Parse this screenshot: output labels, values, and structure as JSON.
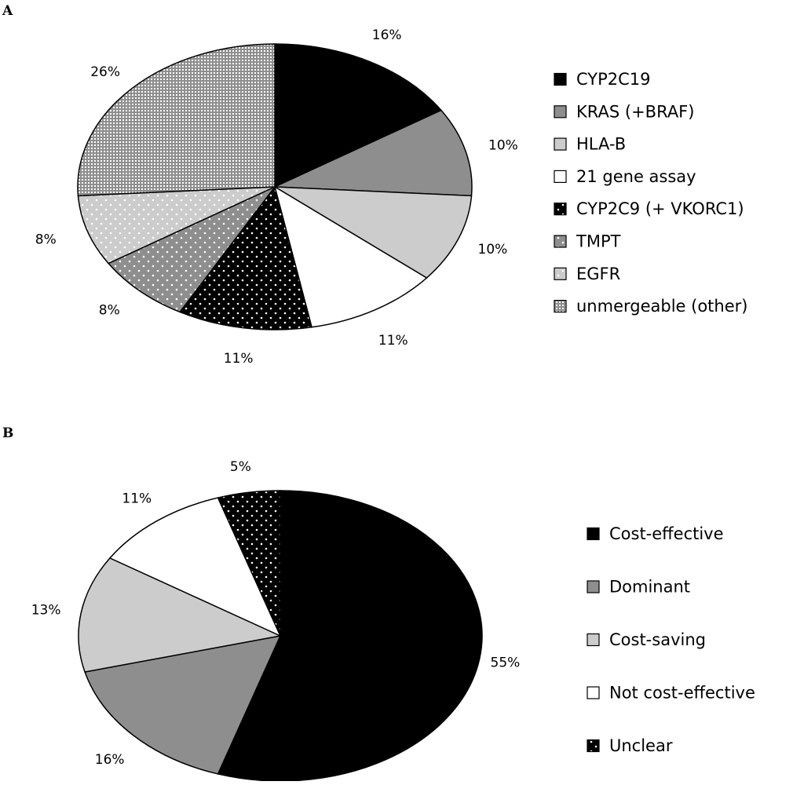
{
  "colors": {
    "black": "#000000",
    "dark_gray": "#8e8e8e",
    "light_gray": "#cccccc",
    "white": "#ffffff",
    "stroke": "#000000"
  },
  "chart_data": [
    {
      "type": "pie",
      "panel_label": "A",
      "legend_position": "right",
      "slices": [
        {
          "label": "CYP2C19",
          "value": 16,
          "value_label": "16%",
          "fill": "black",
          "pattern": "solid"
        },
        {
          "label": "KRAS (+BRAF)",
          "value": 10,
          "value_label": "10%",
          "fill": "dark_gray",
          "pattern": "solid"
        },
        {
          "label": "HLA-B",
          "value": 10,
          "value_label": "10%",
          "fill": "light_gray",
          "pattern": "solid"
        },
        {
          "label": "21 gene assay",
          "value": 11,
          "value_label": "11%",
          "fill": "white",
          "pattern": "solid"
        },
        {
          "label": "CYP2C9 (+ VKORC1)",
          "value": 11,
          "value_label": "11%",
          "fill": "black",
          "pattern": "dots"
        },
        {
          "label": "TMPT",
          "value": 8,
          "value_label": "8%",
          "fill": "dark_gray",
          "pattern": "dots"
        },
        {
          "label": "EGFR",
          "value": 8,
          "value_label": "8%",
          "fill": "light_gray",
          "pattern": "dots"
        },
        {
          "label": "unmergeable (other)",
          "value": 26,
          "value_label": "26%",
          "fill": "dark_gray",
          "pattern": "grid"
        }
      ]
    },
    {
      "type": "pie",
      "panel_label": "B",
      "legend_position": "right",
      "slices": [
        {
          "label": "Cost-effective",
          "value": 55,
          "value_label": "55%",
          "fill": "black",
          "pattern": "solid"
        },
        {
          "label": "Dominant",
          "value": 16,
          "value_label": "16%",
          "fill": "dark_gray",
          "pattern": "solid"
        },
        {
          "label": "Cost-saving",
          "value": 13,
          "value_label": "13%",
          "fill": "light_gray",
          "pattern": "solid"
        },
        {
          "label": "Not cost-effective",
          "value": 11,
          "value_label": "11%",
          "fill": "white",
          "pattern": "solid"
        },
        {
          "label": "Unclear",
          "value": 5,
          "value_label": "5%",
          "fill": "black",
          "pattern": "dots"
        }
      ]
    }
  ]
}
